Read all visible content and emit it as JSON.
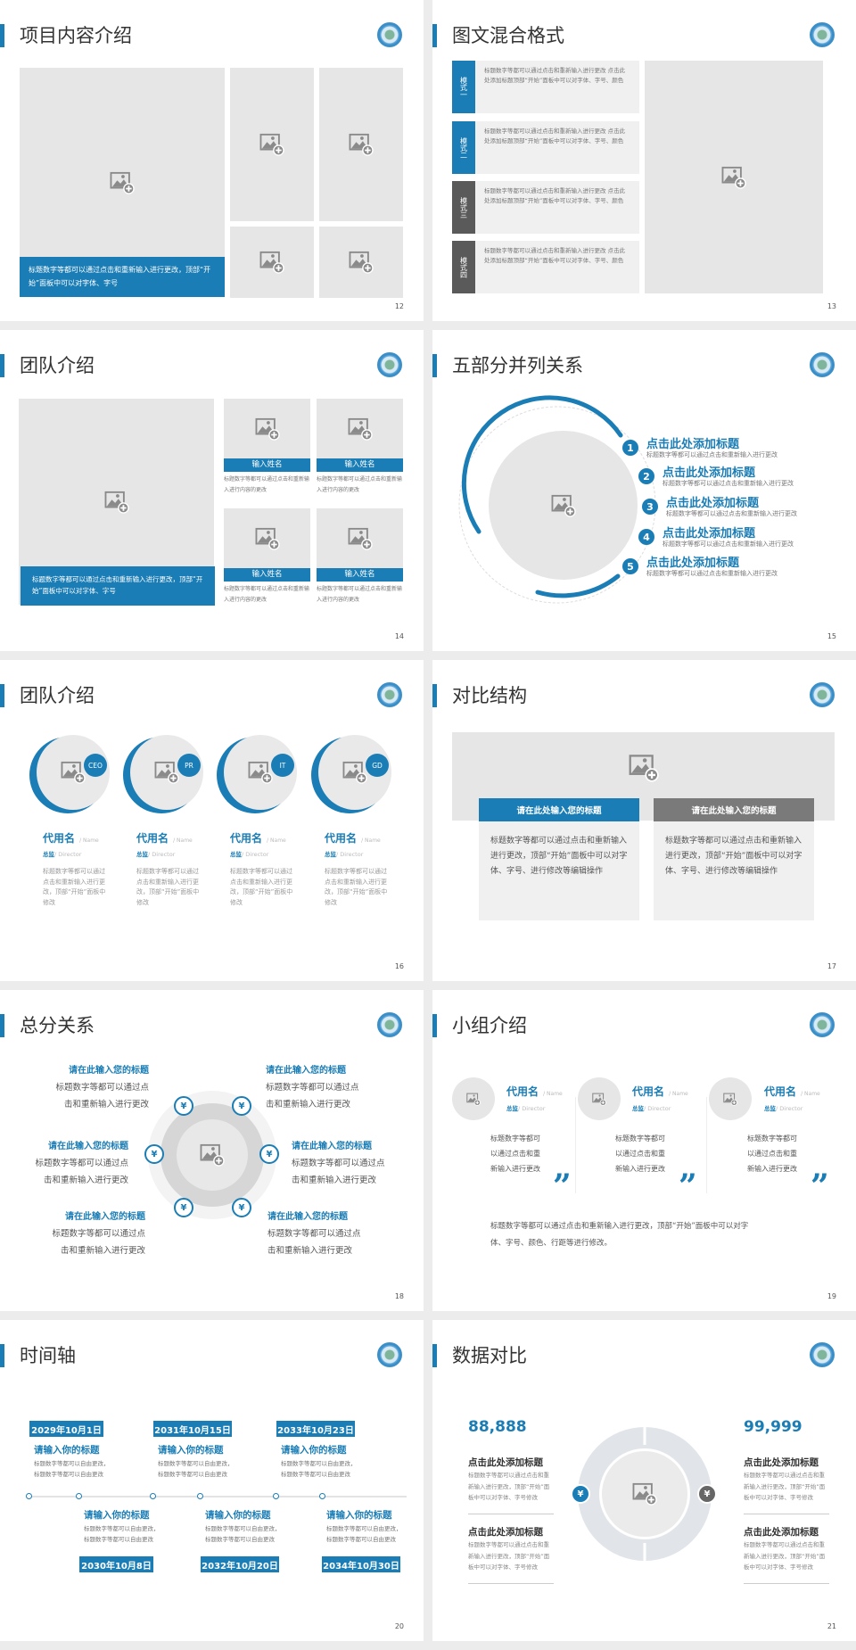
{
  "colors": {
    "accent": "#1a7db5",
    "dark_tab": "#5a5a5a",
    "placeholder": "#e6e6e6"
  },
  "icons": {
    "placeholder": "image-add-icon",
    "logo": "school-seal-logo",
    "money": "money-bag-icon"
  },
  "s12": {
    "title": "项目内容介绍",
    "caption": "标题数字等都可以通过点击和重新输入进行更改，顶部“开始”面板中可以对字体、字号",
    "page": "12"
  },
  "s13": {
    "title": "图文混合格式",
    "page": "13",
    "rows": [
      {
        "tab": "模式一",
        "text": "标题数字等都可以通过点击和重新输入进行更改 点击此处添加标题顶部“开始”面板中可以对字体、字号、颜色"
      },
      {
        "tab": "模式二",
        "text": "标题数字等都可以通过点击和重新输入进行更改 点击此处添加标题顶部“开始”面板中可以对字体、字号、颜色"
      },
      {
        "tab": "模式三",
        "text": "标题数字等都可以通过点击和重新输入进行更改 点击此处添加标题顶部“开始”面板中可以对字体、字号、颜色"
      },
      {
        "tab": "模式四",
        "text": "标题数字等都可以通过点击和重新输入进行更改 点击此处添加标题顶部“开始”面板中可以对字体、字号、颜色"
      }
    ]
  },
  "s14": {
    "title": "团队介绍",
    "page": "14",
    "caption": "标题数字等都可以通过点击和重新输入进行更改，顶部“开始”面板中可以对字体、字号",
    "members": [
      {
        "name": "输入姓名",
        "desc": "标题数字等都可以通过点击和重新输入进行内容的更改"
      },
      {
        "name": "输入姓名",
        "desc": "标题数字等都可以通过点击和重新输入进行内容的更改"
      },
      {
        "name": "输入姓名",
        "desc": "标题数字等都可以通过点击和重新输入进行内容的更改"
      },
      {
        "name": "输入姓名",
        "desc": "标题数字等都可以通过点击和重新输入进行内容的更改"
      }
    ]
  },
  "s15": {
    "title": "五部分并列关系",
    "page": "15",
    "items": [
      {
        "n": "1",
        "title": "点击此处添加标题",
        "desc": "标题数字等都可以通过点击和重新输入进行更改"
      },
      {
        "n": "2",
        "title": "点击此处添加标题",
        "desc": "标题数字等都可以通过点击和重新输入进行更改"
      },
      {
        "n": "3",
        "title": "点击此处添加标题",
        "desc": "标题数字等都可以通过点击和重新输入进行更改"
      },
      {
        "n": "4",
        "title": "点击此处添加标题",
        "desc": "标题数字等都可以通过点击和重新输入进行更改"
      },
      {
        "n": "5",
        "title": "点击此处添加标题",
        "desc": "标题数字等都可以通过点击和重新输入进行更改"
      }
    ]
  },
  "s16": {
    "title": "团队介绍",
    "page": "16",
    "members": [
      {
        "badge": "CEO",
        "name": "代用名",
        "name_en": "/ Name",
        "role": "总监",
        "role_en": "/  Director",
        "desc": "标题数字等都可以通过点击和重新输入进行更改，顶部“开始”面板中修改"
      },
      {
        "badge": "PR",
        "name": "代用名",
        "name_en": "/ Name",
        "role": "总监",
        "role_en": "/  Director",
        "desc": "标题数字等都可以通过点击和重新输入进行更改，顶部“开始”面板中修改"
      },
      {
        "badge": "IT",
        "name": "代用名",
        "name_en": "/ Name",
        "role": "总监",
        "role_en": "/  Director",
        "desc": "标题数字等都可以通过点击和重新输入进行更改，顶部“开始”面板中修改"
      },
      {
        "badge": "GD",
        "name": "代用名",
        "name_en": "/ Name",
        "role": "总监",
        "role_en": "/  Director",
        "desc": "标题数字等都可以通过点击和重新输入进行更改，顶部“开始”面板中修改"
      }
    ]
  },
  "s17": {
    "title": "对比结构",
    "page": "17",
    "cards": [
      {
        "header": "请在此处输入您的标题",
        "text": "标题数字等都可以通过点击和重新输入进行更改，顶部“开始”面板中可以对字体、字号、进行修改等编辑操作"
      },
      {
        "header": "请在此处输入您的标题",
        "text": "标题数字等都可以通过点击和重新输入进行更改，顶部“开始”面板中可以对字体、字号、进行修改等编辑操作"
      }
    ]
  },
  "s18": {
    "title": "总分关系",
    "page": "18",
    "items": [
      {
        "title": "请在此输入您的标题",
        "l1": "标题数字等都可以通过点",
        "l2": "击和重新输入进行更改"
      },
      {
        "title": "请在此输入您的标题",
        "l1": "标题数字等都可以通过点",
        "l2": "击和重新输入进行更改"
      },
      {
        "title": "请在此输入您的标题",
        "l1": "标题数字等都可以通过点",
        "l2": "击和重新输入进行更改"
      },
      {
        "title": "请在此输入您的标题",
        "l1": "标题数字等都可以通过点",
        "l2": "击和重新输入进行更改"
      },
      {
        "title": "请在此输入您的标题",
        "l1": "标题数字等都可以通过点",
        "l2": "击和重新输入进行更改"
      },
      {
        "title": "请在此输入您的标题",
        "l1": "标题数字等都可以通过点",
        "l2": "击和重新输入进行更改"
      }
    ]
  },
  "s19": {
    "title": "小组介绍",
    "page": "19",
    "members": [
      {
        "name": "代用名",
        "name_en": "/ Name",
        "role": "总监",
        "role_en": "/  Director",
        "desc": "标题数字等都可以通过点击和重新输入进行更改"
      },
      {
        "name": "代用名",
        "name_en": "/ Name",
        "role": "总监",
        "role_en": "/  Director",
        "desc": "标题数字等都可以通过点击和重新输入进行更改"
      },
      {
        "name": "代用名",
        "name_en": "/ Name",
        "role": "总监",
        "role_en": "/  Director",
        "desc": "标题数字等都可以通过点击和重新输入进行更改"
      }
    ],
    "quote": "”",
    "summary": "标题数字等都可以通过点击和重新输入进行更改，顶部“开始”面板中可以对字体、字号、颜色、行距等进行修改。"
  },
  "s20": {
    "title": "时间轴",
    "page": "20",
    "events": [
      {
        "date": "2029年10月1日",
        "title": "请输入你的标题",
        "desc": "标题数字等都可以自由更改，标题数字等都可以自由更改"
      },
      {
        "date": "2030年10月8日",
        "title": "请输入你的标题",
        "desc": "标题数字等都可以自由更改，标题数字等都可以自由更改"
      },
      {
        "date": "2031年10月15日",
        "title": "请输入你的标题",
        "desc": "标题数字等都可以自由更改，标题数字等都可以自由更改"
      },
      {
        "date": "2032年10月20日",
        "title": "请输入你的标题",
        "desc": "标题数字等都可以自由更改，标题数字等都可以自由更改"
      },
      {
        "date": "2033年10月23日",
        "title": "请输入你的标题",
        "desc": "标题数字等都可以自由更改，标题数字等都可以自由更改"
      },
      {
        "date": "2034年10月30日",
        "title": "请输入你的标题",
        "desc": "标题数字等都可以自由更改，标题数字等都可以自由更改"
      }
    ]
  },
  "s21": {
    "title": "数据对比",
    "page": "21",
    "left": {
      "value": "88,888",
      "blocks": [
        {
          "title": "点击此处添加标题",
          "desc": "标题数字等都可以通过点击和重新输入进行更改，顶部“开始”面板中可以对字体、字号修改"
        },
        {
          "title": "点击此处添加标题",
          "desc": "标题数字等都可以通过点击和重新输入进行更改，顶部“开始”面板中可以对字体、字号修改"
        }
      ]
    },
    "right": {
      "value": "99,999",
      "blocks": [
        {
          "title": "点击此处添加标题",
          "desc": "标题数字等都可以通过点击和重新输入进行更改，顶部“开始”面板中可以对字体、字号修改"
        },
        {
          "title": "点击此处添加标题",
          "desc": "标题数字等都可以通过点击和重新输入进行更改，顶部“开始”面板中可以对字体、字号修改"
        }
      ]
    }
  }
}
